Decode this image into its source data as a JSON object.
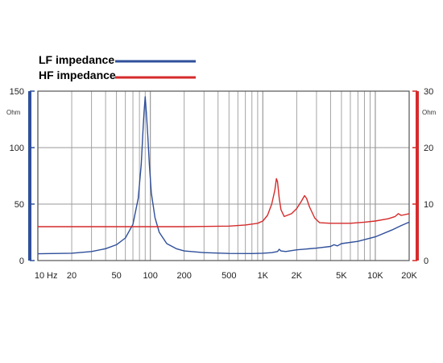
{
  "colors": {
    "lf": "#2f4f9a",
    "hf": "#d52b2b",
    "grid": "#9a9a9a",
    "frame": "#555555",
    "left_axis": "#2f4f9a",
    "right_axis": "#d52b2b"
  },
  "chart_data": {
    "type": "line",
    "x_scale": "log",
    "xlim": [
      10,
      20000
    ],
    "x_ticks": [
      {
        "value": 10,
        "label": "10"
      },
      {
        "value": 20,
        "label": "20"
      },
      {
        "value": 50,
        "label": "50"
      },
      {
        "value": 100,
        "label": "100"
      },
      {
        "value": 200,
        "label": "200"
      },
      {
        "value": 500,
        "label": "500"
      },
      {
        "value": 1000,
        "label": "1K"
      },
      {
        "value": 2000,
        "label": "2K"
      },
      {
        "value": 5000,
        "label": "5K"
      },
      {
        "value": 10000,
        "label": "10K"
      },
      {
        "value": 20000,
        "label": "20K"
      }
    ],
    "x_unit": "Hz",
    "y_left": {
      "unit": "Ohm",
      "lim": [
        0,
        150
      ],
      "ticks": [
        0,
        50,
        100,
        150
      ]
    },
    "y_right": {
      "unit": "Ohm",
      "lim": [
        0,
        30
      ],
      "ticks": [
        0,
        10,
        20,
        30
      ]
    },
    "grid": true,
    "legend_position": "top-left",
    "series": [
      {
        "name": "LF impedance",
        "axis": "left",
        "color": "#2f4f9a",
        "points": [
          [
            10,
            6
          ],
          [
            20,
            6.5
          ],
          [
            30,
            8
          ],
          [
            40,
            10.5
          ],
          [
            50,
            14
          ],
          [
            60,
            20
          ],
          [
            70,
            32
          ],
          [
            78,
            55
          ],
          [
            83,
            85
          ],
          [
            86,
            115
          ],
          [
            88,
            132
          ],
          [
            90,
            145
          ],
          [
            92,
            132
          ],
          [
            95,
            110
          ],
          [
            98,
            85
          ],
          [
            102,
            60
          ],
          [
            110,
            38
          ],
          [
            120,
            25
          ],
          [
            140,
            15
          ],
          [
            170,
            10.5
          ],
          [
            200,
            8.5
          ],
          [
            300,
            7
          ],
          [
            500,
            6.3
          ],
          [
            800,
            6.2
          ],
          [
            1000,
            6.5
          ],
          [
            1200,
            7
          ],
          [
            1350,
            8
          ],
          [
            1400,
            10
          ],
          [
            1450,
            8.5
          ],
          [
            1600,
            8
          ],
          [
            2000,
            9.5
          ],
          [
            3000,
            11
          ],
          [
            4000,
            12.5
          ],
          [
            4300,
            14
          ],
          [
            4600,
            13
          ],
          [
            5000,
            15
          ],
          [
            7000,
            17
          ],
          [
            10000,
            21
          ],
          [
            14000,
            27
          ],
          [
            17000,
            31
          ],
          [
            20000,
            34
          ]
        ]
      },
      {
        "name": "HF impedance",
        "axis": "right",
        "color": "#d52b2b",
        "points": [
          [
            10,
            6
          ],
          [
            200,
            6
          ],
          [
            500,
            6.1
          ],
          [
            700,
            6.3
          ],
          [
            900,
            6.6
          ],
          [
            1000,
            7
          ],
          [
            1100,
            8
          ],
          [
            1200,
            10
          ],
          [
            1280,
            12.5
          ],
          [
            1320,
            14.5
          ],
          [
            1350,
            14
          ],
          [
            1400,
            11
          ],
          [
            1450,
            9
          ],
          [
            1550,
            7.8
          ],
          [
            1800,
            8.3
          ],
          [
            2000,
            9.2
          ],
          [
            2200,
            10.5
          ],
          [
            2350,
            11.5
          ],
          [
            2450,
            11
          ],
          [
            2600,
            9.5
          ],
          [
            2900,
            7.5
          ],
          [
            3200,
            6.7
          ],
          [
            4000,
            6.6
          ],
          [
            6000,
            6.6
          ],
          [
            8000,
            6.8
          ],
          [
            10000,
            7
          ],
          [
            13000,
            7.4
          ],
          [
            15000,
            7.8
          ],
          [
            16000,
            8.3
          ],
          [
            17000,
            8
          ],
          [
            20000,
            8.3
          ]
        ]
      }
    ]
  }
}
